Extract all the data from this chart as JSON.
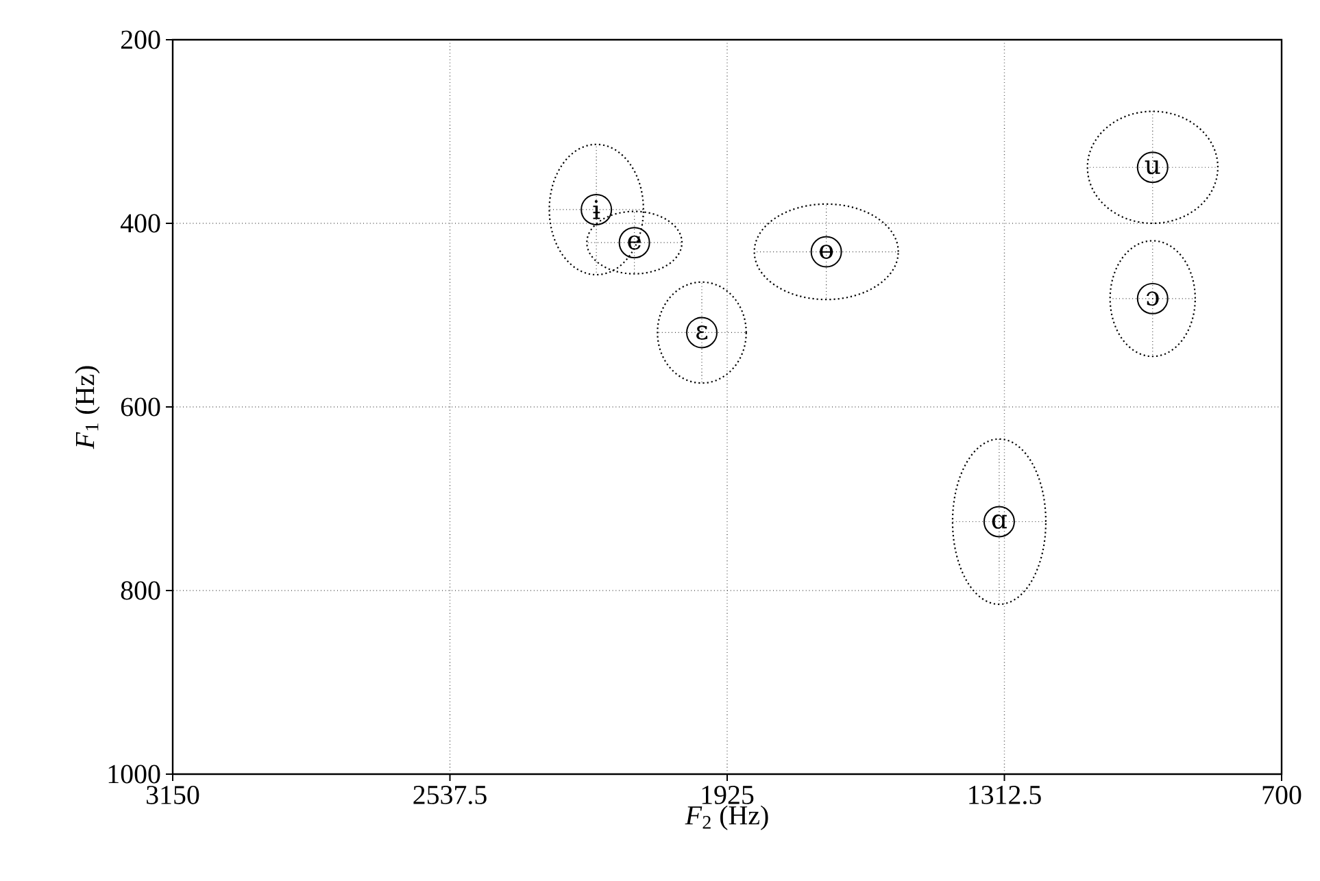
{
  "chart_data": {
    "type": "scatter",
    "xlabel": "*F*$_{2}$ (Hz)",
    "ylabel": "*F*$_{1}$ (Hz)",
    "x": [
      2214,
      2130,
      1981,
      1706,
      1324,
      985,
      985
    ],
    "values": [
      385,
      421,
      519,
      431,
      725,
      339,
      482
    ],
    "xerrors": [
      104,
      105,
      98,
      159,
      103,
      144,
      94
    ],
    "errors": [
      71,
      34,
      55,
      52,
      90,
      61,
      63
    ],
    "color": "#000000",
    "marker": "circle",
    "xlim": [
      3150,
      700
    ],
    "ylim": [
      1000,
      200
    ],
    "xticks": [
      3150,
      2537.5,
      1925,
      1312.5,
      700
    ],
    "yticks": [
      200,
      400,
      600,
      800,
      1000
    ],
    "grid": true,
    "annotations": [
      {
        "text": "ɨ",
        "x": 2214,
        "y": 385
      },
      {
        "text": "e",
        "x": 2130,
        "y": 421
      },
      {
        "text": "ɛ",
        "x": 1981,
        "y": 519
      },
      {
        "text": "ɵ",
        "x": 1706,
        "y": 431
      },
      {
        "text": "ɑ",
        "x": 1324,
        "y": 725
      },
      {
        "text": "u",
        "x": 985,
        "y": 339
      },
      {
        "text": "ɔ",
        "x": 985,
        "y": 482
      }
    ]
  }
}
